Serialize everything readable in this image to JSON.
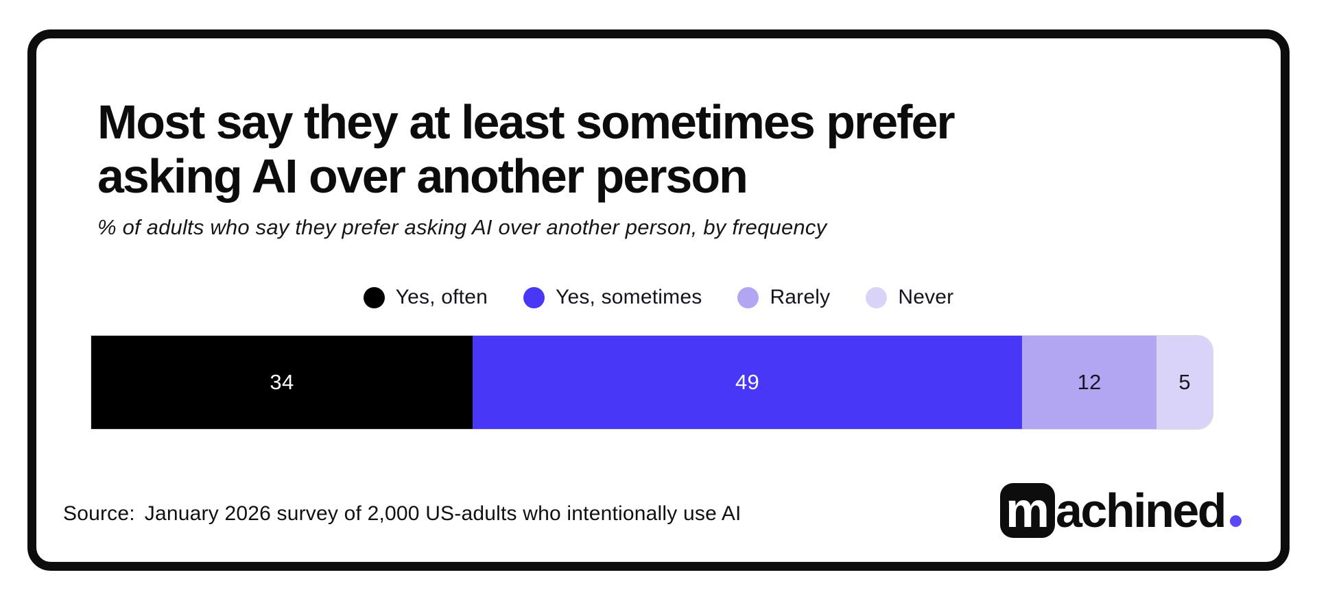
{
  "header": {
    "title_line1": "Most say they at least sometimes prefer",
    "title_line2": "asking AI over another person",
    "subtitle": "% of adults who say they prefer asking AI over another person, by frequency"
  },
  "chart_data": {
    "type": "bar",
    "stacked": true,
    "orientation": "horizontal",
    "title": "Most say they at least sometimes prefer asking AI over another person",
    "subtitle": "% of adults who say they prefer asking AI over another person, by frequency",
    "categories": [
      "Yes, often",
      "Yes, sometimes",
      "Rarely",
      "Never"
    ],
    "values": [
      34,
      49,
      12,
      5
    ],
    "colors": [
      "#000000",
      "#4837f4",
      "#b2a6f3",
      "#dad3f8"
    ],
    "value_label_colors": [
      "#ffffff",
      "#ffffff",
      "#18151f",
      "#18151f"
    ],
    "xlim": [
      0,
      100
    ],
    "legend_position": "top-center",
    "grid": false
  },
  "source": {
    "label": "Source:",
    "text": "January 2026 survey of 2,000 US-adults who intentionally use AI"
  },
  "logo": {
    "boxed_letter": "m",
    "wordmark": "achined",
    "period_color": "#5a48f5"
  }
}
